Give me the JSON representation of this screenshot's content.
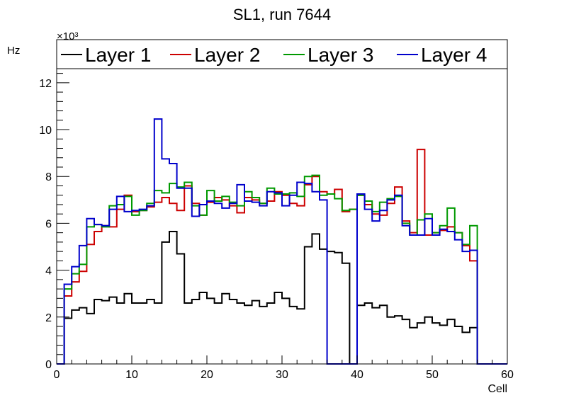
{
  "chart_data": {
    "type": "line",
    "style": "step-histogram",
    "title": "SL1, run 7644",
    "xlabel": "Cell",
    "ylabel": "Hz",
    "y_multiplier_label": "×10³",
    "y_multiplier": 1000,
    "xlim": [
      0,
      60
    ],
    "ylim": [
      0,
      12.6
    ],
    "x_ticks": [
      0,
      10,
      20,
      30,
      40,
      50,
      60
    ],
    "y_ticks": [
      0,
      2,
      4,
      6,
      8,
      10,
      12
    ],
    "grid": false,
    "legend_position": "top",
    "bins": {
      "start": 0,
      "width": 1,
      "count": 60
    },
    "series": [
      {
        "name": "Layer 1",
        "color": "#000000",
        "values": [
          0,
          1.95,
          2.3,
          2.4,
          2.15,
          2.75,
          2.7,
          2.85,
          2.6,
          3.0,
          2.6,
          2.6,
          2.75,
          2.6,
          5.2,
          5.65,
          4.7,
          2.6,
          2.75,
          3.05,
          2.8,
          2.6,
          3.0,
          2.75,
          2.6,
          2.5,
          2.7,
          2.45,
          2.6,
          3.05,
          2.8,
          2.45,
          2.35,
          5.0,
          5.55,
          4.9,
          4.8,
          4.75,
          4.3,
          0,
          2.5,
          2.6,
          2.4,
          2.5,
          2.0,
          2.05,
          1.9,
          1.55,
          1.75,
          2.0,
          1.75,
          1.65,
          1.9,
          1.6,
          1.35,
          1.55,
          0,
          0,
          0,
          0
        ]
      },
      {
        "name": "Layer 2",
        "color": "#cc0000",
        "values": [
          0,
          2.9,
          3.5,
          3.95,
          5.1,
          5.65,
          5.9,
          5.85,
          6.6,
          7.2,
          6.5,
          6.55,
          6.7,
          6.9,
          7.1,
          6.85,
          6.55,
          7.6,
          6.85,
          6.35,
          6.9,
          7.1,
          7.0,
          6.75,
          6.45,
          7.1,
          7.0,
          6.85,
          6.95,
          7.35,
          7.2,
          6.85,
          6.75,
          7.65,
          8.0,
          7.35,
          7.25,
          7.45,
          6.5,
          6.6,
          7.2,
          6.8,
          6.4,
          6.35,
          6.85,
          7.55,
          6.1,
          5.6,
          9.15,
          5.5,
          5.6,
          5.7,
          5.85,
          5.6,
          5.05,
          4.4,
          0,
          0,
          0,
          0
        ]
      },
      {
        "name": "Layer 3",
        "color": "#009900",
        "values": [
          0,
          3.2,
          3.85,
          4.25,
          5.85,
          5.95,
          5.85,
          6.75,
          6.8,
          7.15,
          6.35,
          6.55,
          6.85,
          7.4,
          7.3,
          7.7,
          7.55,
          7.75,
          6.75,
          6.35,
          7.4,
          6.95,
          7.15,
          6.9,
          6.75,
          7.35,
          7.1,
          6.85,
          7.5,
          7.25,
          7.25,
          7.3,
          7.15,
          8.0,
          8.05,
          7.2,
          7.25,
          7.05,
          6.55,
          6.6,
          7.2,
          6.95,
          6.5,
          6.9,
          7.05,
          7.15,
          6.0,
          5.5,
          6.15,
          6.4,
          5.6,
          5.9,
          6.65,
          5.6,
          5.1,
          5.9,
          0,
          0,
          0,
          0
        ]
      },
      {
        "name": "Layer 4",
        "color": "#0000cc",
        "values": [
          0,
          3.4,
          4.15,
          5.05,
          6.2,
          5.95,
          5.9,
          6.6,
          7.15,
          6.5,
          6.55,
          6.6,
          6.75,
          10.45,
          8.75,
          8.55,
          7.5,
          7.5,
          6.3,
          6.8,
          6.95,
          6.85,
          6.65,
          6.85,
          7.65,
          6.95,
          6.9,
          6.75,
          7.35,
          7.3,
          6.75,
          7.2,
          7.75,
          7.7,
          7.35,
          7.0,
          0,
          0,
          0,
          0,
          7.25,
          6.6,
          6.1,
          6.55,
          7.0,
          7.2,
          5.9,
          5.5,
          5.5,
          6.2,
          5.5,
          5.75,
          5.65,
          5.3,
          4.8,
          4.85,
          0,
          0,
          0,
          0
        ]
      }
    ]
  }
}
